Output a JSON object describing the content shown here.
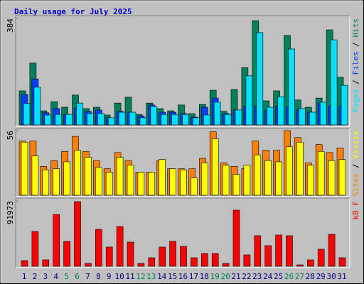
{
  "title": "Daily usage for July 2025",
  "chart_data": [
    {
      "type": "bar",
      "ylim": [
        0,
        384
      ],
      "legend_reversed": true,
      "series": [
        {
          "name": "Hits",
          "color": "#00805c",
          "values": [
            123,
            223,
            51,
            84,
            64,
            108,
            59,
            64,
            36,
            79,
            100,
            38,
            79,
            59,
            51,
            72,
            41,
            74,
            125,
            49,
            128,
            207,
            376,
            87,
            123,
            323,
            90,
            64,
            97,
            343,
            172
          ]
        },
        {
          "name": "Files",
          "color": "#0040ff",
          "values": [
            110,
            166,
            44,
            59,
            38,
            61,
            49,
            54,
            26,
            49,
            46,
            33,
            72,
            46,
            46,
            41,
            28,
            64,
            97,
            41,
            54,
            67,
            67,
            54,
            67,
            67,
            54,
            46,
            79,
            67,
            67
          ]
        },
        {
          "name": "Pages",
          "color": "#00e0ff",
          "values": [
            77,
            136,
            36,
            38,
            38,
            79,
            41,
            41,
            26,
            46,
            46,
            26,
            67,
            38,
            38,
            38,
            26,
            36,
            82,
            38,
            54,
            177,
            333,
            64,
            102,
            274,
            59,
            46,
            82,
            307,
            143
          ]
        }
      ]
    },
    {
      "type": "bar",
      "ylim": [
        0,
        56
      ],
      "legend_reversed": false,
      "series": [
        {
          "name": "Sites",
          "color": "#ff8000",
          "values": [
            47,
            47,
            25,
            30,
            38,
            51,
            38,
            30,
            23,
            37,
            30,
            20,
            20,
            30,
            23,
            23,
            23,
            32,
            55,
            28,
            25,
            23,
            47,
            39,
            39,
            56,
            50,
            28,
            44,
            37,
            41
          ]
        },
        {
          "name": "Visits",
          "color": "#ffff00",
          "values": [
            46,
            34,
            22,
            23,
            29,
            39,
            33,
            24,
            20,
            33,
            26,
            20,
            20,
            31,
            23,
            22,
            15,
            28,
            49,
            26,
            18,
            26,
            35,
            30,
            29,
            42,
            46,
            26,
            38,
            30,
            31
          ]
        }
      ]
    },
    {
      "type": "bar",
      "ylim": [
        0,
        91973
      ],
      "legend_reversed": false,
      "categories": [
        "1",
        "2",
        "3",
        "4",
        "5",
        "6",
        "7",
        "8",
        "9",
        "10",
        "11",
        "12",
        "13",
        "14",
        "15",
        "16",
        "17",
        "18",
        "19",
        "20",
        "21",
        "22",
        "23",
        "24",
        "25",
        "26",
        "27",
        "28",
        "29",
        "30",
        "31"
      ],
      "highlighted": [
        "5",
        "6",
        "12",
        "13",
        "19",
        "20",
        "26",
        "27"
      ],
      "highlight_color": "#00805c",
      "label_color": "#000080",
      "series": [
        {
          "name": "kB F",
          "color": "#ff0000",
          "values": [
            8000,
            49000,
            9000,
            73000,
            35000,
            91000,
            4000,
            52000,
            27000,
            56000,
            34000,
            4000,
            12000,
            27000,
            35000,
            28000,
            12000,
            18000,
            18000,
            4000,
            79000,
            16000,
            43000,
            29000,
            44000,
            43000,
            2000,
            9000,
            24000,
            45000,
            12000
          ]
        }
      ]
    }
  ]
}
